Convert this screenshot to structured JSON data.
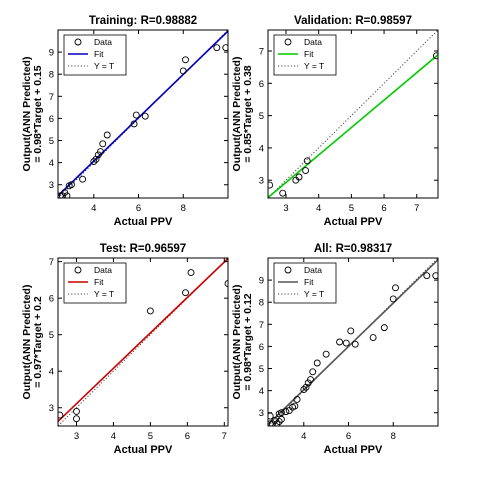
{
  "chart_data": [
    {
      "type": "scatter",
      "title": "Training: R=0.98882",
      "xlabel": "Actual PPV",
      "ylabel": "Output(ANN Predicted)",
      "ylabel2": "= 0.98*Target + 0.15",
      "xlim": [
        2.4,
        10
      ],
      "ylim": [
        2.4,
        10
      ],
      "xticks": [
        "4",
        "6",
        "8"
      ],
      "yticks": [
        "3",
        "4",
        "5",
        "6",
        "7",
        "8",
        "9"
      ],
      "xtick_values": [
        4,
        6,
        8
      ],
      "ytick_values": [
        3,
        4,
        5,
        6,
        7,
        8,
        9
      ],
      "fit": {
        "slope": 0.98,
        "intercept": 0.15,
        "color": "#0000bb"
      },
      "legend": {
        "position": "top-left",
        "entries": [
          "Data",
          "Fit",
          "Y = T"
        ]
      },
      "points": [
        [
          2.5,
          2.5
        ],
        [
          2.6,
          2.5
        ],
        [
          2.7,
          2.65
        ],
        [
          2.8,
          2.5
        ],
        [
          2.9,
          2.95
        ],
        [
          3.0,
          3.0
        ],
        [
          3.5,
          3.25
        ],
        [
          4.0,
          4.05
        ],
        [
          4.1,
          4.15
        ],
        [
          4.2,
          4.35
        ],
        [
          4.3,
          4.5
        ],
        [
          4.4,
          4.85
        ],
        [
          4.6,
          5.25
        ],
        [
          5.8,
          5.75
        ],
        [
          5.9,
          6.15
        ],
        [
          6.3,
          6.1
        ],
        [
          8.0,
          8.15
        ],
        [
          8.1,
          8.65
        ],
        [
          9.5,
          9.2
        ],
        [
          9.9,
          9.2
        ]
      ]
    },
    {
      "type": "scatter",
      "title": "Validation: R=0.98597",
      "xlabel": "Actual PPV",
      "ylabel": "Output(ANN Predicted)",
      "ylabel2": "= 0.85*Target + 0.38",
      "xlim": [
        2.45,
        7.65
      ],
      "ylim": [
        2.45,
        7.65
      ],
      "xticks": [
        "3",
        "4",
        "5",
        "6",
        "7"
      ],
      "yticks": [
        "3",
        "4",
        "5",
        "6",
        "7"
      ],
      "xtick_values": [
        3,
        4,
        5,
        6,
        7
      ],
      "ytick_values": [
        3,
        4,
        5,
        6,
        7
      ],
      "fit": {
        "slope": 0.85,
        "intercept": 0.38,
        "color": "#00cc00"
      },
      "legend": {
        "position": "top-left",
        "entries": [
          "Data",
          "Fit",
          "Y = T"
        ]
      },
      "points": [
        [
          2.5,
          2.85
        ],
        [
          2.9,
          2.6
        ],
        [
          3.3,
          3.0
        ],
        [
          3.4,
          3.1
        ],
        [
          3.6,
          3.3
        ],
        [
          3.65,
          3.6
        ],
        [
          7.6,
          6.85
        ]
      ]
    },
    {
      "type": "scatter",
      "title": "Test: R=0.96597",
      "xlabel": "Actual PPV",
      "ylabel": "Output(ANN Predicted)",
      "ylabel2": "= 0.97*Target + 0.2",
      "xlim": [
        2.5,
        7.1
      ],
      "ylim": [
        2.5,
        7.1
      ],
      "xticks": [
        "3",
        "4",
        "5",
        "6",
        "7"
      ],
      "yticks": [
        "3",
        "4",
        "5",
        "6",
        "7"
      ],
      "xtick_values": [
        3,
        4,
        5,
        6,
        7
      ],
      "ytick_values": [
        3,
        4,
        5,
        6,
        7
      ],
      "fit": {
        "slope": 0.97,
        "intercept": 0.2,
        "color": "#cc0000"
      },
      "legend": {
        "position": "top-left",
        "entries": [
          "Data",
          "Fit",
          "Y = T"
        ]
      },
      "points": [
        [
          2.55,
          2.8
        ],
        [
          3.0,
          2.7
        ],
        [
          3.0,
          2.9
        ],
        [
          5.0,
          5.65
        ],
        [
          5.95,
          6.15
        ],
        [
          6.1,
          6.7
        ],
        [
          7.1,
          6.4
        ]
      ]
    },
    {
      "type": "scatter",
      "title": "All: R=0.98317",
      "xlabel": "Actual PPV",
      "ylabel": "Output(ANN Predicted)",
      "ylabel2": "= 0.98*Target + 0.12",
      "xlim": [
        2.4,
        10
      ],
      "ylim": [
        2.4,
        10
      ],
      "xticks": [
        "4",
        "6",
        "8"
      ],
      "yticks": [
        "3",
        "4",
        "5",
        "6",
        "7",
        "8",
        "9"
      ],
      "xtick_values": [
        4,
        6,
        8
      ],
      "ytick_values": [
        3,
        4,
        5,
        6,
        7,
        8,
        9
      ],
      "fit": {
        "slope": 0.98,
        "intercept": 0.12,
        "color": "#555555"
      },
      "legend": {
        "position": "top-left",
        "entries": [
          "Data",
          "Fit",
          "Y = T"
        ]
      },
      "points": [
        [
          2.5,
          2.5
        ],
        [
          2.5,
          2.85
        ],
        [
          2.6,
          2.5
        ],
        [
          2.7,
          2.65
        ],
        [
          2.8,
          2.5
        ],
        [
          2.9,
          2.6
        ],
        [
          2.9,
          2.95
        ],
        [
          3.0,
          3.0
        ],
        [
          3.0,
          2.7
        ],
        [
          3.2,
          3.05
        ],
        [
          3.35,
          3.1
        ],
        [
          3.5,
          3.25
        ],
        [
          3.6,
          3.3
        ],
        [
          3.7,
          3.6
        ],
        [
          4.0,
          4.05
        ],
        [
          4.1,
          4.15
        ],
        [
          4.2,
          4.35
        ],
        [
          4.3,
          4.5
        ],
        [
          4.4,
          4.85
        ],
        [
          4.6,
          5.25
        ],
        [
          5.0,
          5.65
        ],
        [
          5.6,
          6.2
        ],
        [
          5.9,
          6.15
        ],
        [
          6.1,
          6.7
        ],
        [
          6.3,
          6.1
        ],
        [
          7.1,
          6.4
        ],
        [
          7.6,
          6.85
        ],
        [
          8.0,
          8.15
        ],
        [
          8.1,
          8.65
        ],
        [
          9.5,
          9.2
        ],
        [
          9.9,
          9.2
        ]
      ]
    }
  ]
}
